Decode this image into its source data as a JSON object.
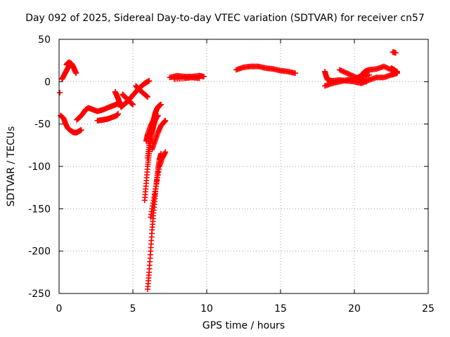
{
  "chart_data": {
    "type": "scatter",
    "title": "Day 092 of 2025, Sidereal Day-to-day VTEC variation (SDTVAR) for receiver cn57",
    "xlabel": "GPS time / hours",
    "ylabel": "SDTVAR / TECUs",
    "xlim": [
      0,
      25
    ],
    "ylim": [
      -250,
      50
    ],
    "xticks": [
      0,
      5,
      10,
      15,
      20,
      25
    ],
    "yticks": [
      50,
      0,
      -50,
      -100,
      -150,
      -200,
      -250
    ],
    "grid": true,
    "marker": "+",
    "color": "#ff0000",
    "series": [
      {
        "points": [
          [
            0.05,
            -13
          ]
        ]
      },
      {
        "points": [
          [
            0.2,
            3
          ],
          [
            0.35,
            8
          ],
          [
            0.5,
            13
          ],
          [
            0.65,
            18
          ],
          [
            0.75,
            22
          ],
          [
            0.85,
            21
          ],
          [
            0.95,
            18
          ],
          [
            1.05,
            14
          ],
          [
            1.15,
            10
          ]
        ]
      },
      {
        "points": [
          [
            0.5,
            20
          ],
          [
            0.6,
            22
          ],
          [
            0.7,
            23
          ]
        ]
      },
      {
        "points": [
          [
            0.1,
            -40
          ],
          [
            0.3,
            -43
          ],
          [
            0.45,
            -50
          ],
          [
            0.6,
            -55
          ],
          [
            0.8,
            -58
          ],
          [
            1.0,
            -60
          ],
          [
            1.2,
            -60
          ],
          [
            1.4,
            -58
          ],
          [
            1.5,
            -57
          ]
        ]
      },
      {
        "points": [
          [
            1.2,
            -45
          ],
          [
            1.4,
            -42
          ],
          [
            1.6,
            -38
          ],
          [
            1.8,
            -33
          ],
          [
            2.0,
            -31
          ],
          [
            2.3,
            -33
          ],
          [
            2.6,
            -35
          ],
          [
            3.0,
            -33
          ],
          [
            3.4,
            -30
          ],
          [
            3.7,
            -28
          ],
          [
            4.0,
            -26
          ],
          [
            4.2,
            -25
          ]
        ]
      },
      {
        "points": [
          [
            2.6,
            -46
          ],
          [
            3.0,
            -45
          ],
          [
            3.3,
            -44
          ],
          [
            3.6,
            -42
          ],
          [
            3.9,
            -40
          ],
          [
            4.0,
            -38
          ]
        ]
      },
      {
        "points": [
          [
            3.8,
            -12
          ],
          [
            3.9,
            -16
          ],
          [
            4.0,
            -20
          ],
          [
            4.1,
            -25
          ],
          [
            4.2,
            -30
          ]
        ]
      },
      {
        "points": [
          [
            4.2,
            -30
          ],
          [
            4.4,
            -27
          ],
          [
            4.6,
            -24
          ],
          [
            4.8,
            -20
          ],
          [
            5.0,
            -16
          ],
          [
            5.2,
            -12
          ],
          [
            5.4,
            -8
          ],
          [
            5.6,
            -5
          ],
          [
            5.8,
            -2
          ],
          [
            6.0,
            0
          ],
          [
            6.1,
            1
          ]
        ]
      },
      {
        "points": [
          [
            4.3,
            -15
          ],
          [
            4.4,
            -17
          ],
          [
            4.6,
            -20
          ],
          [
            4.8,
            -24
          ],
          [
            5.0,
            -27
          ]
        ]
      },
      {
        "points": [
          [
            5.2,
            -5
          ],
          [
            5.4,
            -9
          ],
          [
            5.6,
            -12
          ],
          [
            5.8,
            -15
          ],
          [
            6.0,
            -18
          ]
        ]
      },
      {
        "points": [
          [
            5.8,
            -140
          ],
          [
            5.9,
            -120
          ],
          [
            6.0,
            -100
          ],
          [
            6.1,
            -85
          ],
          [
            6.2,
            -70
          ],
          [
            6.3,
            -60
          ],
          [
            6.4,
            -52
          ],
          [
            6.5,
            -46
          ],
          [
            6.6,
            -42
          ],
          [
            6.7,
            -40
          ]
        ]
      },
      {
        "points": [
          [
            6.0,
            -90
          ],
          [
            6.1,
            -75
          ],
          [
            6.2,
            -63
          ],
          [
            6.3,
            -53
          ],
          [
            6.4,
            -45
          ],
          [
            6.5,
            -38
          ],
          [
            6.6,
            -33
          ],
          [
            6.7,
            -30
          ],
          [
            6.8,
            -28
          ],
          [
            6.9,
            -27
          ]
        ]
      },
      {
        "points": [
          [
            5.9,
            -70
          ],
          [
            6.0,
            -62
          ],
          [
            6.2,
            -52
          ],
          [
            6.4,
            -45
          ],
          [
            6.5,
            -40
          ]
        ]
      },
      {
        "points": [
          [
            6.0,
            -245
          ],
          [
            6.1,
            -225
          ],
          [
            6.2,
            -200
          ],
          [
            6.3,
            -175
          ],
          [
            6.4,
            -155
          ],
          [
            6.5,
            -135
          ],
          [
            6.6,
            -118
          ],
          [
            6.7,
            -103
          ],
          [
            6.8,
            -92
          ],
          [
            6.9,
            -85
          ]
        ]
      },
      {
        "points": [
          [
            6.2,
            -160
          ],
          [
            6.4,
            -140
          ],
          [
            6.6,
            -120
          ],
          [
            6.8,
            -100
          ],
          [
            7.0,
            -90
          ],
          [
            7.2,
            -83
          ]
        ]
      },
      {
        "points": [
          [
            6.3,
            -80
          ],
          [
            6.5,
            -70
          ],
          [
            6.7,
            -60
          ],
          [
            6.9,
            -52
          ],
          [
            7.1,
            -48
          ],
          [
            7.2,
            -46
          ]
        ]
      },
      {
        "points": [
          [
            7.5,
            5
          ],
          [
            8.0,
            7
          ],
          [
            8.5,
            6
          ],
          [
            9.0,
            6
          ],
          [
            9.5,
            7
          ],
          [
            9.8,
            6
          ]
        ]
      },
      {
        "points": [
          [
            7.8,
            3
          ],
          [
            8.5,
            4
          ],
          [
            9.0,
            5
          ],
          [
            9.5,
            4
          ]
        ]
      },
      {
        "points": [
          [
            12.0,
            14
          ],
          [
            12.5,
            17
          ],
          [
            13.0,
            18
          ],
          [
            13.5,
            18
          ],
          [
            14.0,
            16
          ],
          [
            14.5,
            15
          ],
          [
            15.0,
            13
          ],
          [
            15.5,
            12
          ],
          [
            16.0,
            10
          ]
        ]
      },
      {
        "points": [
          [
            18.0,
            12
          ],
          [
            18.1,
            6
          ],
          [
            18.2,
            2
          ],
          [
            18.5,
            1
          ],
          [
            19.0,
            2
          ],
          [
            19.5,
            1
          ],
          [
            20.0,
            0
          ],
          [
            20.5,
            -2
          ],
          [
            21.0,
            2
          ],
          [
            21.5,
            5
          ],
          [
            22.0,
            5
          ],
          [
            22.5,
            8
          ],
          [
            22.9,
            10
          ]
        ]
      },
      {
        "points": [
          [
            18.0,
            -5
          ],
          [
            18.5,
            -2
          ],
          [
            19.0,
            0
          ],
          [
            19.5,
            2
          ],
          [
            20.0,
            4
          ],
          [
            20.5,
            6
          ],
          [
            21.0,
            8
          ]
        ]
      },
      {
        "points": [
          [
            19.0,
            14
          ],
          [
            19.5,
            10
          ],
          [
            20.0,
            6
          ],
          [
            20.5,
            2
          ],
          [
            20.8,
            0
          ]
        ]
      },
      {
        "points": [
          [
            20.2,
            4
          ],
          [
            20.5,
            8
          ],
          [
            20.7,
            12
          ],
          [
            21.0,
            14
          ],
          [
            21.5,
            15
          ],
          [
            22.0,
            18
          ],
          [
            22.5,
            14
          ],
          [
            22.9,
            12
          ]
        ]
      },
      {
        "points": [
          [
            22.5,
            16
          ],
          [
            22.7,
            14
          ],
          [
            22.9,
            11
          ]
        ]
      },
      {
        "points": [
          [
            22.6,
            35
          ],
          [
            22.8,
            34
          ]
        ]
      }
    ]
  }
}
